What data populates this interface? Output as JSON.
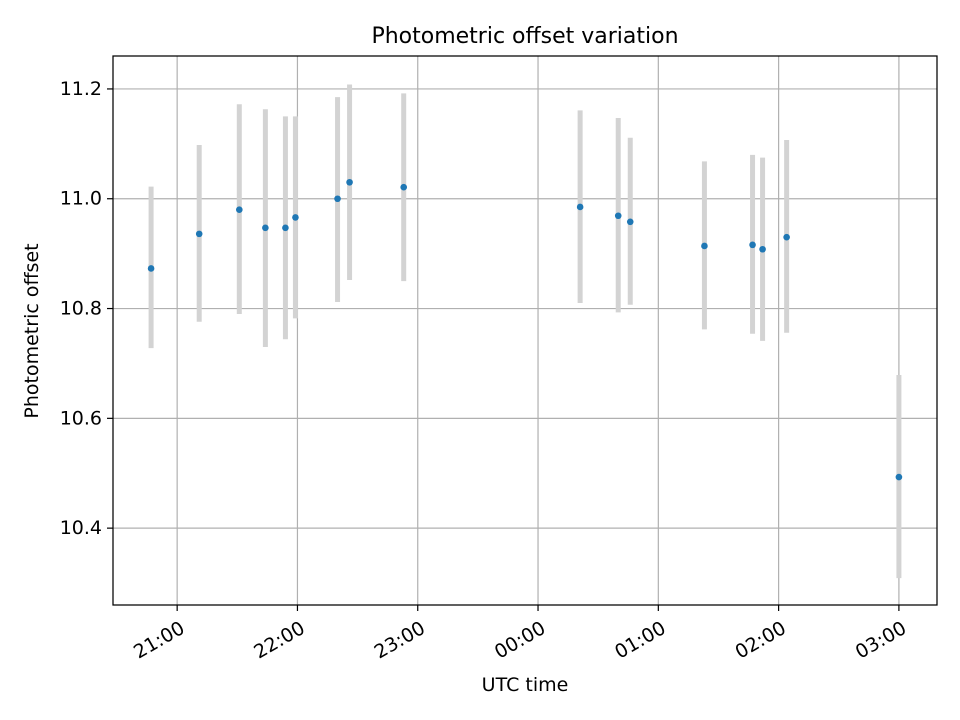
{
  "chart_data": {
    "type": "scatter",
    "title": "Photometric offset variation",
    "xlabel": "UTC time",
    "ylabel": "Photometric offset",
    "x_unit": "time of day (HH:MM, UTC)",
    "xlim": [
      "20:28",
      "03:19"
    ],
    "ylim": [
      10.26,
      11.26
    ],
    "grid": true,
    "x_ticks": [
      "21:00",
      "22:00",
      "23:00",
      "00:00",
      "01:00",
      "02:00",
      "03:00"
    ],
    "y_ticks": [
      "10.4",
      "10.6",
      "10.8",
      "11.0",
      "11.2"
    ],
    "y_tick_values": [
      10.4,
      10.6,
      10.8,
      11.0,
      11.2
    ],
    "colors": {
      "point": "#1f77b4",
      "errorbar": "#d3d3d3",
      "grid": "#b0b0b0",
      "axes": "#000000"
    },
    "series": [
      {
        "points": [
          {
            "time": "20:47",
            "y": 10.873,
            "ylow": 10.728,
            "yhigh": 11.022
          },
          {
            "time": "21:11",
            "y": 10.936,
            "ylow": 10.776,
            "yhigh": 11.098
          },
          {
            "time": "21:31",
            "y": 10.98,
            "ylow": 10.79,
            "yhigh": 11.172
          },
          {
            "time": "21:44",
            "y": 10.947,
            "ylow": 10.73,
            "yhigh": 11.163
          },
          {
            "time": "21:54",
            "y": 10.947,
            "ylow": 10.744,
            "yhigh": 11.15
          },
          {
            "time": "21:59",
            "y": 10.966,
            "ylow": 10.782,
            "yhigh": 11.15
          },
          {
            "time": "22:20",
            "y": 11.0,
            "ylow": 10.812,
            "yhigh": 11.185
          },
          {
            "time": "22:26",
            "y": 11.03,
            "ylow": 10.852,
            "yhigh": 11.208
          },
          {
            "time": "22:53",
            "y": 11.021,
            "ylow": 10.85,
            "yhigh": 11.192
          },
          {
            "time": "00:21",
            "y": 10.985,
            "ylow": 10.81,
            "yhigh": 11.161
          },
          {
            "time": "00:40",
            "y": 10.969,
            "ylow": 10.793,
            "yhigh": 11.147
          },
          {
            "time": "00:46",
            "y": 10.958,
            "ylow": 10.807,
            "yhigh": 11.111
          },
          {
            "time": "01:23",
            "y": 10.914,
            "ylow": 10.762,
            "yhigh": 11.068
          },
          {
            "time": "01:47",
            "y": 10.916,
            "ylow": 10.754,
            "yhigh": 11.08
          },
          {
            "time": "01:52",
            "y": 10.908,
            "ylow": 10.741,
            "yhigh": 11.075
          },
          {
            "time": "02:04",
            "y": 10.93,
            "ylow": 10.756,
            "yhigh": 11.107
          },
          {
            "time": "03:00",
            "y": 10.493,
            "ylow": 10.309,
            "yhigh": 10.679
          }
        ]
      }
    ]
  }
}
